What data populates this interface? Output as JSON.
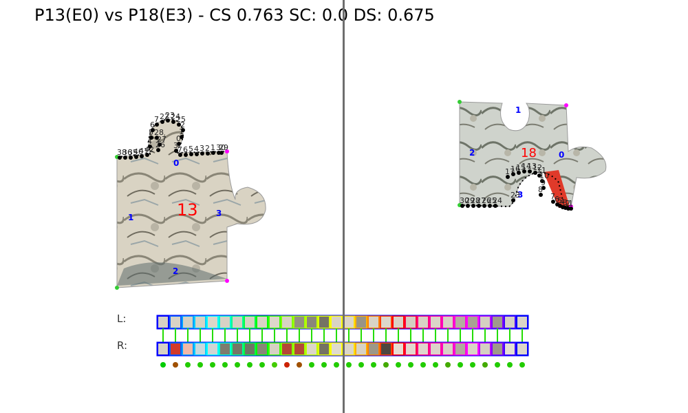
{
  "title": "P13(E0) vs P18(E3) - CS 0.763 SC: 0.0 DS: 0.675",
  "left_piece": {
    "id_label": "13",
    "edge_labels": [
      "0",
      "1",
      "2",
      "3"
    ],
    "tab_points": [
      "38",
      "36",
      "35",
      "40",
      "41",
      "42",
      "4",
      "5",
      "6",
      "7",
      "22",
      "23",
      "24",
      "25",
      "2",
      "1",
      "0",
      "3",
      "7",
      "6",
      "5",
      "4",
      "3",
      "2",
      "1",
      "30",
      "29",
      "28",
      "27",
      "26"
    ]
  },
  "right_piece": {
    "id_label": "18",
    "edge_labels": [
      "0",
      "1",
      "2",
      "3"
    ],
    "tab_points": [
      "17",
      "16",
      "15",
      "14",
      "13",
      "12",
      "11",
      "10",
      "9",
      "8",
      "7",
      "6",
      "5",
      "4",
      "3",
      "2",
      "1",
      "30",
      "29",
      "28",
      "27",
      "26",
      "25",
      "24",
      "23"
    ]
  },
  "strip": {
    "left_label": "L:",
    "right_label": "R:",
    "left_colors": [
      "#d7d2c4",
      "#d8d3c6",
      "#d6d1c3",
      "#d9d3c4",
      "#dcd6c8",
      "#d8d2c5",
      "#d5cfc1",
      "#d6d0c2",
      "#d9d3c5",
      "#ddd7ca",
      "#d9d2c3",
      "#949081",
      "#8a877a",
      "#757363",
      "#d9d3c4",
      "#dcd6c8",
      "#999486",
      "#d9d3c5",
      "#ddd8cb",
      "#d9d3c6",
      "#d4cec1",
      "#d8d2c4",
      "#dbd5c8",
      "#d7d1c4",
      "#b3ae9f",
      "#a8a393",
      "#d5cfc2",
      "#9f9a8b",
      "#d6d0c3",
      "#dad4c7"
    ],
    "left_borders": [
      "#0000ff",
      "#0060ff",
      "#00a0ff",
      "#00d0ff",
      "#00ffff",
      "#00ffd0",
      "#00ff90",
      "#00ff40",
      "#00ff00",
      "#40ff00",
      "#80ff00",
      "#a0ff00",
      "#c0ff00",
      "#e0ff00",
      "#ffff00",
      "#ffe000",
      "#ffb000",
      "#ff8000",
      "#ff4000",
      "#ff0000",
      "#ff0040",
      "#ff0080",
      "#ff00a0",
      "#ff00c0",
      "#ff00e0",
      "#ff00ff",
      "#c000ff",
      "#8000ff",
      "#4000ff",
      "#0000ff"
    ],
    "right_colors": [
      "#d7d2c4",
      "#d23a2a",
      "#f0b8a8",
      "#c9d8dc",
      "#cfd5d3",
      "#7e7c6e",
      "#767566",
      "#6e7565",
      "#888777",
      "#d6d1c3",
      "#b54636",
      "#b44838",
      "#dcd6c8",
      "#757363",
      "#e0dbcd",
      "#dcd6c8",
      "#d8d2c5",
      "#9d9888",
      "#4e4640",
      "#e6dcd2",
      "#e2d8cf",
      "#dfd5cc",
      "#ddd3ca",
      "#d8d0c6",
      "#b0aa9d",
      "#d9d3c5",
      "#d5cfc2",
      "#9e998a",
      "#e4dfd3",
      "#dcd6c9"
    ],
    "right_borders": [
      "#0000ff",
      "#0060ff",
      "#00a0ff",
      "#00d0ff",
      "#00ffff",
      "#00ffd0",
      "#00ff90",
      "#00ff40",
      "#00ff00",
      "#40ff00",
      "#80ff00",
      "#a0ff00",
      "#c0ff00",
      "#e0ff00",
      "#ffff00",
      "#ffe000",
      "#ffb000",
      "#ff8000",
      "#ff4000",
      "#ff0000",
      "#ff0040",
      "#ff0080",
      "#ff00a0",
      "#ff00c0",
      "#ff00e0",
      "#ff00ff",
      "#c000ff",
      "#8000ff",
      "#4000ff",
      "#0000ff"
    ],
    "dot_colors": [
      "#00cc00",
      "#a05000",
      "#22cc00",
      "#22cc00",
      "#22cc00",
      "#22cc00",
      "#22cc00",
      "#22cc00",
      "#22cc00",
      "#44cc00",
      "#cc2200",
      "#a05000",
      "#22cc00",
      "#22cc00",
      "#22cc00",
      "#22cc00",
      "#22cc00",
      "#22cc00",
      "#44aa00",
      "#22cc00",
      "#22cc00",
      "#22cc00",
      "#22cc00",
      "#44aa00",
      "#22cc00",
      "#22cc00",
      "#44aa00",
      "#22cc00",
      "#22cc00",
      "#22cc00"
    ]
  }
}
